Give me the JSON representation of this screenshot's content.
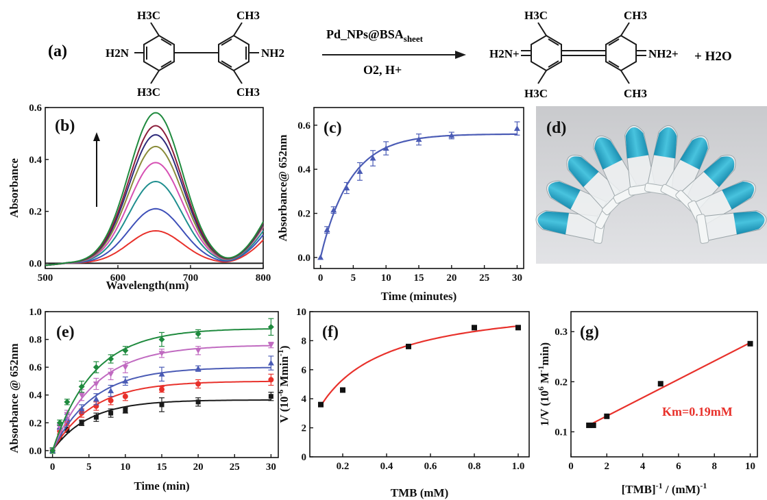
{
  "reaction": {
    "panel_label": "(a)",
    "reactant": {
      "h3c_tl": "H3C",
      "ch3_tr": "CH3",
      "h3c_bl": "H3C",
      "ch3_br": "CH3",
      "left_amine": "H2N",
      "right_amine": "NH2"
    },
    "catalyst": {
      "base": "Pd_NPs@BSA",
      "subscript": "sheet"
    },
    "conditions": "O2, H+",
    "product": {
      "h3c_tl": "H3C",
      "ch3_tr": "CH3",
      "h3c_bl": "H3C",
      "ch3_br": "CH3",
      "left_imine": "H2N+",
      "right_imine": "NH2+"
    },
    "byproduct": "+ H2O"
  },
  "colors": {
    "red": "#e8312b",
    "blue": "#3d4fb8",
    "teal": "#1e8e8e",
    "magenta": "#d64fb3",
    "olive": "#8a8c3a",
    "navy": "#2d2a7a",
    "maroon": "#8a1d3a",
    "green": "#1f8a3e",
    "black": "#1a1a1a",
    "slate": "#4a5bb5",
    "emerald": "#1f8a3e",
    "orchid": "#c06ac0"
  },
  "photo": {
    "panel_label": "(d)",
    "tubes": 10,
    "solution_color": "#2aa7c6"
  },
  "chart_data": [
    {
      "panel": "b",
      "type": "line",
      "xlabel": "Wavelength(nm)",
      "ylabel": "Absorbance",
      "xlim": [
        500,
        800
      ],
      "ylim": [
        -0.02,
        0.6
      ],
      "xticks": [
        500,
        600,
        700,
        800
      ],
      "yticks": [
        0.0,
        0.2,
        0.4,
        0.6
      ],
      "annotation": "arrow up (increasing absorbance with time)",
      "peak_x": 652,
      "series": [
        {
          "color": "black",
          "peak": 0.0,
          "baseline": 0.0
        },
        {
          "color": "red",
          "peak": 0.125,
          "baseline": 0.09
        },
        {
          "color": "blue",
          "peak": 0.21,
          "baseline": 0.11
        },
        {
          "color": "teal",
          "peak": 0.315,
          "baseline": 0.125
        },
        {
          "color": "magenta",
          "peak": 0.388,
          "baseline": 0.14
        },
        {
          "color": "olive",
          "peak": 0.45,
          "baseline": 0.145
        },
        {
          "color": "navy",
          "peak": 0.495,
          "baseline": 0.15
        },
        {
          "color": "maroon",
          "peak": 0.53,
          "baseline": 0.155
        },
        {
          "color": "green",
          "peak": 0.58,
          "baseline": 0.16
        }
      ]
    },
    {
      "panel": "c",
      "type": "scatter",
      "xlabel": "Time (minutes)",
      "ylabel": "Absorbance@ 652nm",
      "xlim": [
        -1,
        31
      ],
      "ylim": [
        -0.05,
        0.68
      ],
      "xticks": [
        0,
        5,
        10,
        15,
        20,
        25,
        30
      ],
      "yticks": [
        0.0,
        0.2,
        0.4,
        0.6
      ],
      "x": [
        0,
        1,
        2,
        4,
        6,
        8,
        10,
        15,
        20,
        30
      ],
      "y": [
        0.0,
        0.125,
        0.215,
        0.315,
        0.39,
        0.45,
        0.495,
        0.535,
        0.553,
        0.585
      ],
      "err": [
        0.0,
        0.015,
        0.015,
        0.025,
        0.04,
        0.035,
        0.03,
        0.025,
        0.015,
        0.03
      ],
      "fit": {
        "a": 0.56,
        "k": 0.22
      }
    },
    {
      "panel": "e",
      "type": "scatter",
      "xlabel": "Time (min)",
      "ylabel": "Absorbance @ 652nm",
      "xlim": [
        -1,
        31
      ],
      "ylim": [
        -0.05,
        1.0
      ],
      "xticks": [
        0,
        5,
        10,
        15,
        20,
        25,
        30
      ],
      "yticks": [
        0.0,
        0.2,
        0.4,
        0.6,
        0.8,
        1.0
      ],
      "x": [
        0,
        1,
        2,
        4,
        6,
        8,
        10,
        15,
        20,
        30
      ],
      "series": [
        {
          "color": "black",
          "marker": "square",
          "y": [
            0.0,
            0.1,
            0.15,
            0.2,
            0.24,
            0.27,
            0.29,
            0.33,
            0.35,
            0.39
          ],
          "err": [
            0.02,
            0.02,
            0.02,
            0.02,
            0.03,
            0.03,
            0.02,
            0.05,
            0.03,
            0.03
          ],
          "fit": {
            "a": 0.365,
            "k": 0.2
          }
        },
        {
          "color": "red",
          "marker": "circle",
          "y": [
            0.0,
            0.14,
            0.2,
            0.27,
            0.32,
            0.36,
            0.39,
            0.44,
            0.48,
            0.51
          ],
          "err": [
            0.02,
            0.02,
            0.02,
            0.03,
            0.03,
            0.03,
            0.03,
            0.02,
            0.03,
            0.04
          ],
          "fit": {
            "a": 0.5,
            "k": 0.18
          }
        },
        {
          "color": "slate",
          "marker": "triangle",
          "y": [
            0.0,
            0.17,
            0.23,
            0.3,
            0.37,
            0.43,
            0.5,
            0.55,
            0.59,
            0.63
          ],
          "err": [
            0.02,
            0.02,
            0.03,
            0.03,
            0.04,
            0.04,
            0.03,
            0.05,
            0.02,
            0.05
          ],
          "fit": {
            "a": 0.6,
            "k": 0.18
          }
        },
        {
          "color": "orchid",
          "marker": "triangle-down",
          "y": [
            0.0,
            0.17,
            0.26,
            0.4,
            0.48,
            0.55,
            0.6,
            0.7,
            0.72,
            0.76
          ],
          "err": [
            0.02,
            0.02,
            0.03,
            0.04,
            0.04,
            0.04,
            0.04,
            0.03,
            0.03,
            0.02
          ],
          "fit": {
            "a": 0.76,
            "k": 0.17
          }
        },
        {
          "color": "emerald",
          "marker": "diamond",
          "y": [
            0.0,
            0.2,
            0.35,
            0.46,
            0.6,
            0.66,
            0.72,
            0.8,
            0.84,
            0.89
          ],
          "err": [
            0.02,
            0.02,
            0.02,
            0.04,
            0.04,
            0.03,
            0.03,
            0.05,
            0.03,
            0.06
          ],
          "fit": {
            "a": 0.88,
            "k": 0.18
          }
        }
      ]
    },
    {
      "panel": "f",
      "type": "scatter",
      "xlabel": "TMB (mM)",
      "ylabel": "V (10-6 Mmin-1)",
      "xlim": [
        0.05,
        1.05
      ],
      "ylim": [
        0,
        10
      ],
      "xticks": [
        0.2,
        0.4,
        0.6,
        0.8,
        1.0
      ],
      "yticks": [
        0,
        2,
        4,
        6,
        8,
        10
      ],
      "x": [
        0.1,
        0.2,
        0.5,
        0.8,
        1.0
      ],
      "y": [
        3.6,
        4.6,
        7.6,
        8.9,
        8.9
      ],
      "fit": {
        "vmax": 10.9,
        "km": 0.21
      }
    },
    {
      "panel": "g",
      "type": "scatter",
      "xlabel": "[TMB]-1 / (mM)-1",
      "ylabel": "1/V (106 M-1min)",
      "xlim": [
        0,
        10.4
      ],
      "ylim": [
        0.05,
        0.34
      ],
      "xticks": [
        0,
        2,
        4,
        6,
        8,
        10
      ],
      "yticks": [
        0.1,
        0.2,
        0.3
      ],
      "x": [
        1.0,
        1.25,
        2.0,
        5.0,
        10.0
      ],
      "y": [
        0.113,
        0.113,
        0.131,
        0.196,
        0.276
      ],
      "fit": {
        "slope": 0.0183,
        "intercept": 0.095
      },
      "annotation": "Km=0.19mM"
    }
  ]
}
